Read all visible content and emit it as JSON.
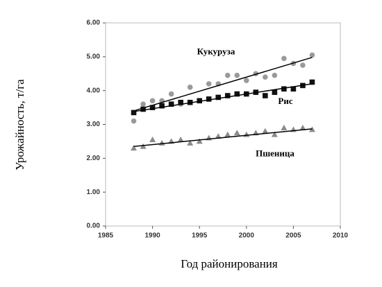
{
  "chart_data": {
    "type": "scatter",
    "x_label": "Год районирования",
    "y_label": "Урожайность, т/га",
    "xlim": [
      1985,
      2010
    ],
    "xticks": [
      1985,
      1990,
      1995,
      2000,
      2005,
      2010
    ],
    "ylim": [
      0,
      6
    ],
    "yticks": [
      {
        "value": 0,
        "label": "0.00"
      },
      {
        "value": 1,
        "label": "1.00"
      },
      {
        "value": 2,
        "label": "2.00"
      },
      {
        "value": 3,
        "label": "3.00"
      },
      {
        "value": 4,
        "label": "4.00"
      },
      {
        "value": 5,
        "label": "5.00"
      },
      {
        "value": 6,
        "label": "6.00"
      }
    ],
    "x": [
      1988,
      1989,
      1990,
      1991,
      1992,
      1993,
      1994,
      1995,
      1996,
      1997,
      1998,
      1999,
      2000,
      2001,
      2002,
      2003,
      2004,
      2005,
      2006,
      2007
    ],
    "series": [
      {
        "name": "Кукуруза",
        "color": "#9a9a9a",
        "marker": "circle",
        "values": [
          3.1,
          3.6,
          3.7,
          3.7,
          3.9,
          3.6,
          4.1,
          3.7,
          4.2,
          4.2,
          4.45,
          4.45,
          4.3,
          4.5,
          4.4,
          4.45,
          4.95,
          4.8,
          4.75,
          5.05
        ],
        "trend_x": [
          1988,
          2007
        ],
        "trend_values": [
          3.4,
          4.98
        ]
      },
      {
        "name": "Рис",
        "color": "#111111",
        "marker": "square",
        "values": [
          3.35,
          3.45,
          3.5,
          3.55,
          3.6,
          3.65,
          3.65,
          3.7,
          3.75,
          3.8,
          3.85,
          3.9,
          3.9,
          3.95,
          3.85,
          3.95,
          4.05,
          4.05,
          4.15,
          4.25
        ],
        "trend_x": [
          1988,
          2007
        ],
        "trend_values": [
          3.38,
          4.2
        ]
      },
      {
        "name": "Пшеница",
        "color": "#8a8a8a",
        "marker": "triangle",
        "values": [
          2.3,
          2.35,
          2.55,
          2.45,
          2.5,
          2.55,
          2.45,
          2.5,
          2.6,
          2.65,
          2.7,
          2.75,
          2.7,
          2.75,
          2.8,
          2.7,
          2.9,
          2.85,
          2.9,
          2.85
        ],
        "trend_x": [
          1988,
          2007
        ],
        "trend_values": [
          2.35,
          2.87
        ]
      }
    ]
  }
}
